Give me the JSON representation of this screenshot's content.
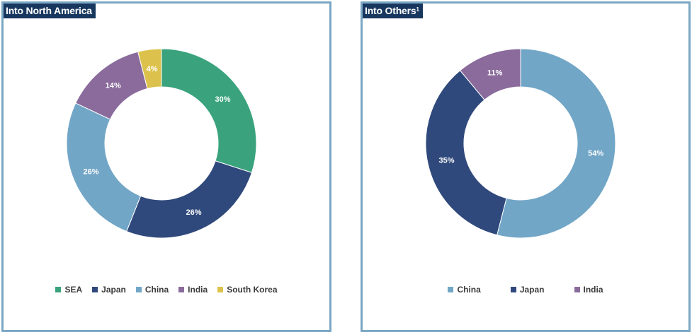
{
  "chart_data": [
    {
      "type": "pie",
      "title": "Into North America",
      "title_sup": "",
      "labels": [
        "SEA",
        "Japan",
        "China",
        "India",
        "South Korea"
      ],
      "values": [
        30,
        26,
        26,
        14,
        4
      ],
      "data_labels": [
        "30%",
        "26%",
        "26%",
        "14%",
        "4%"
      ],
      "colors": [
        "#3aa37d",
        "#30497c",
        "#72a6c7",
        "#8a6b9c",
        "#dcc24c"
      ],
      "legend_position": "bottom"
    },
    {
      "type": "pie",
      "title": "Into Others",
      "title_sup": "1",
      "labels": [
        "China",
        "Japan",
        "India"
      ],
      "values": [
        54,
        35,
        11
      ],
      "data_labels": [
        "54%",
        "35%",
        "11%"
      ],
      "colors": [
        "#72a6c7",
        "#30497c",
        "#8a6b9c"
      ],
      "legend_position": "bottom"
    }
  ]
}
